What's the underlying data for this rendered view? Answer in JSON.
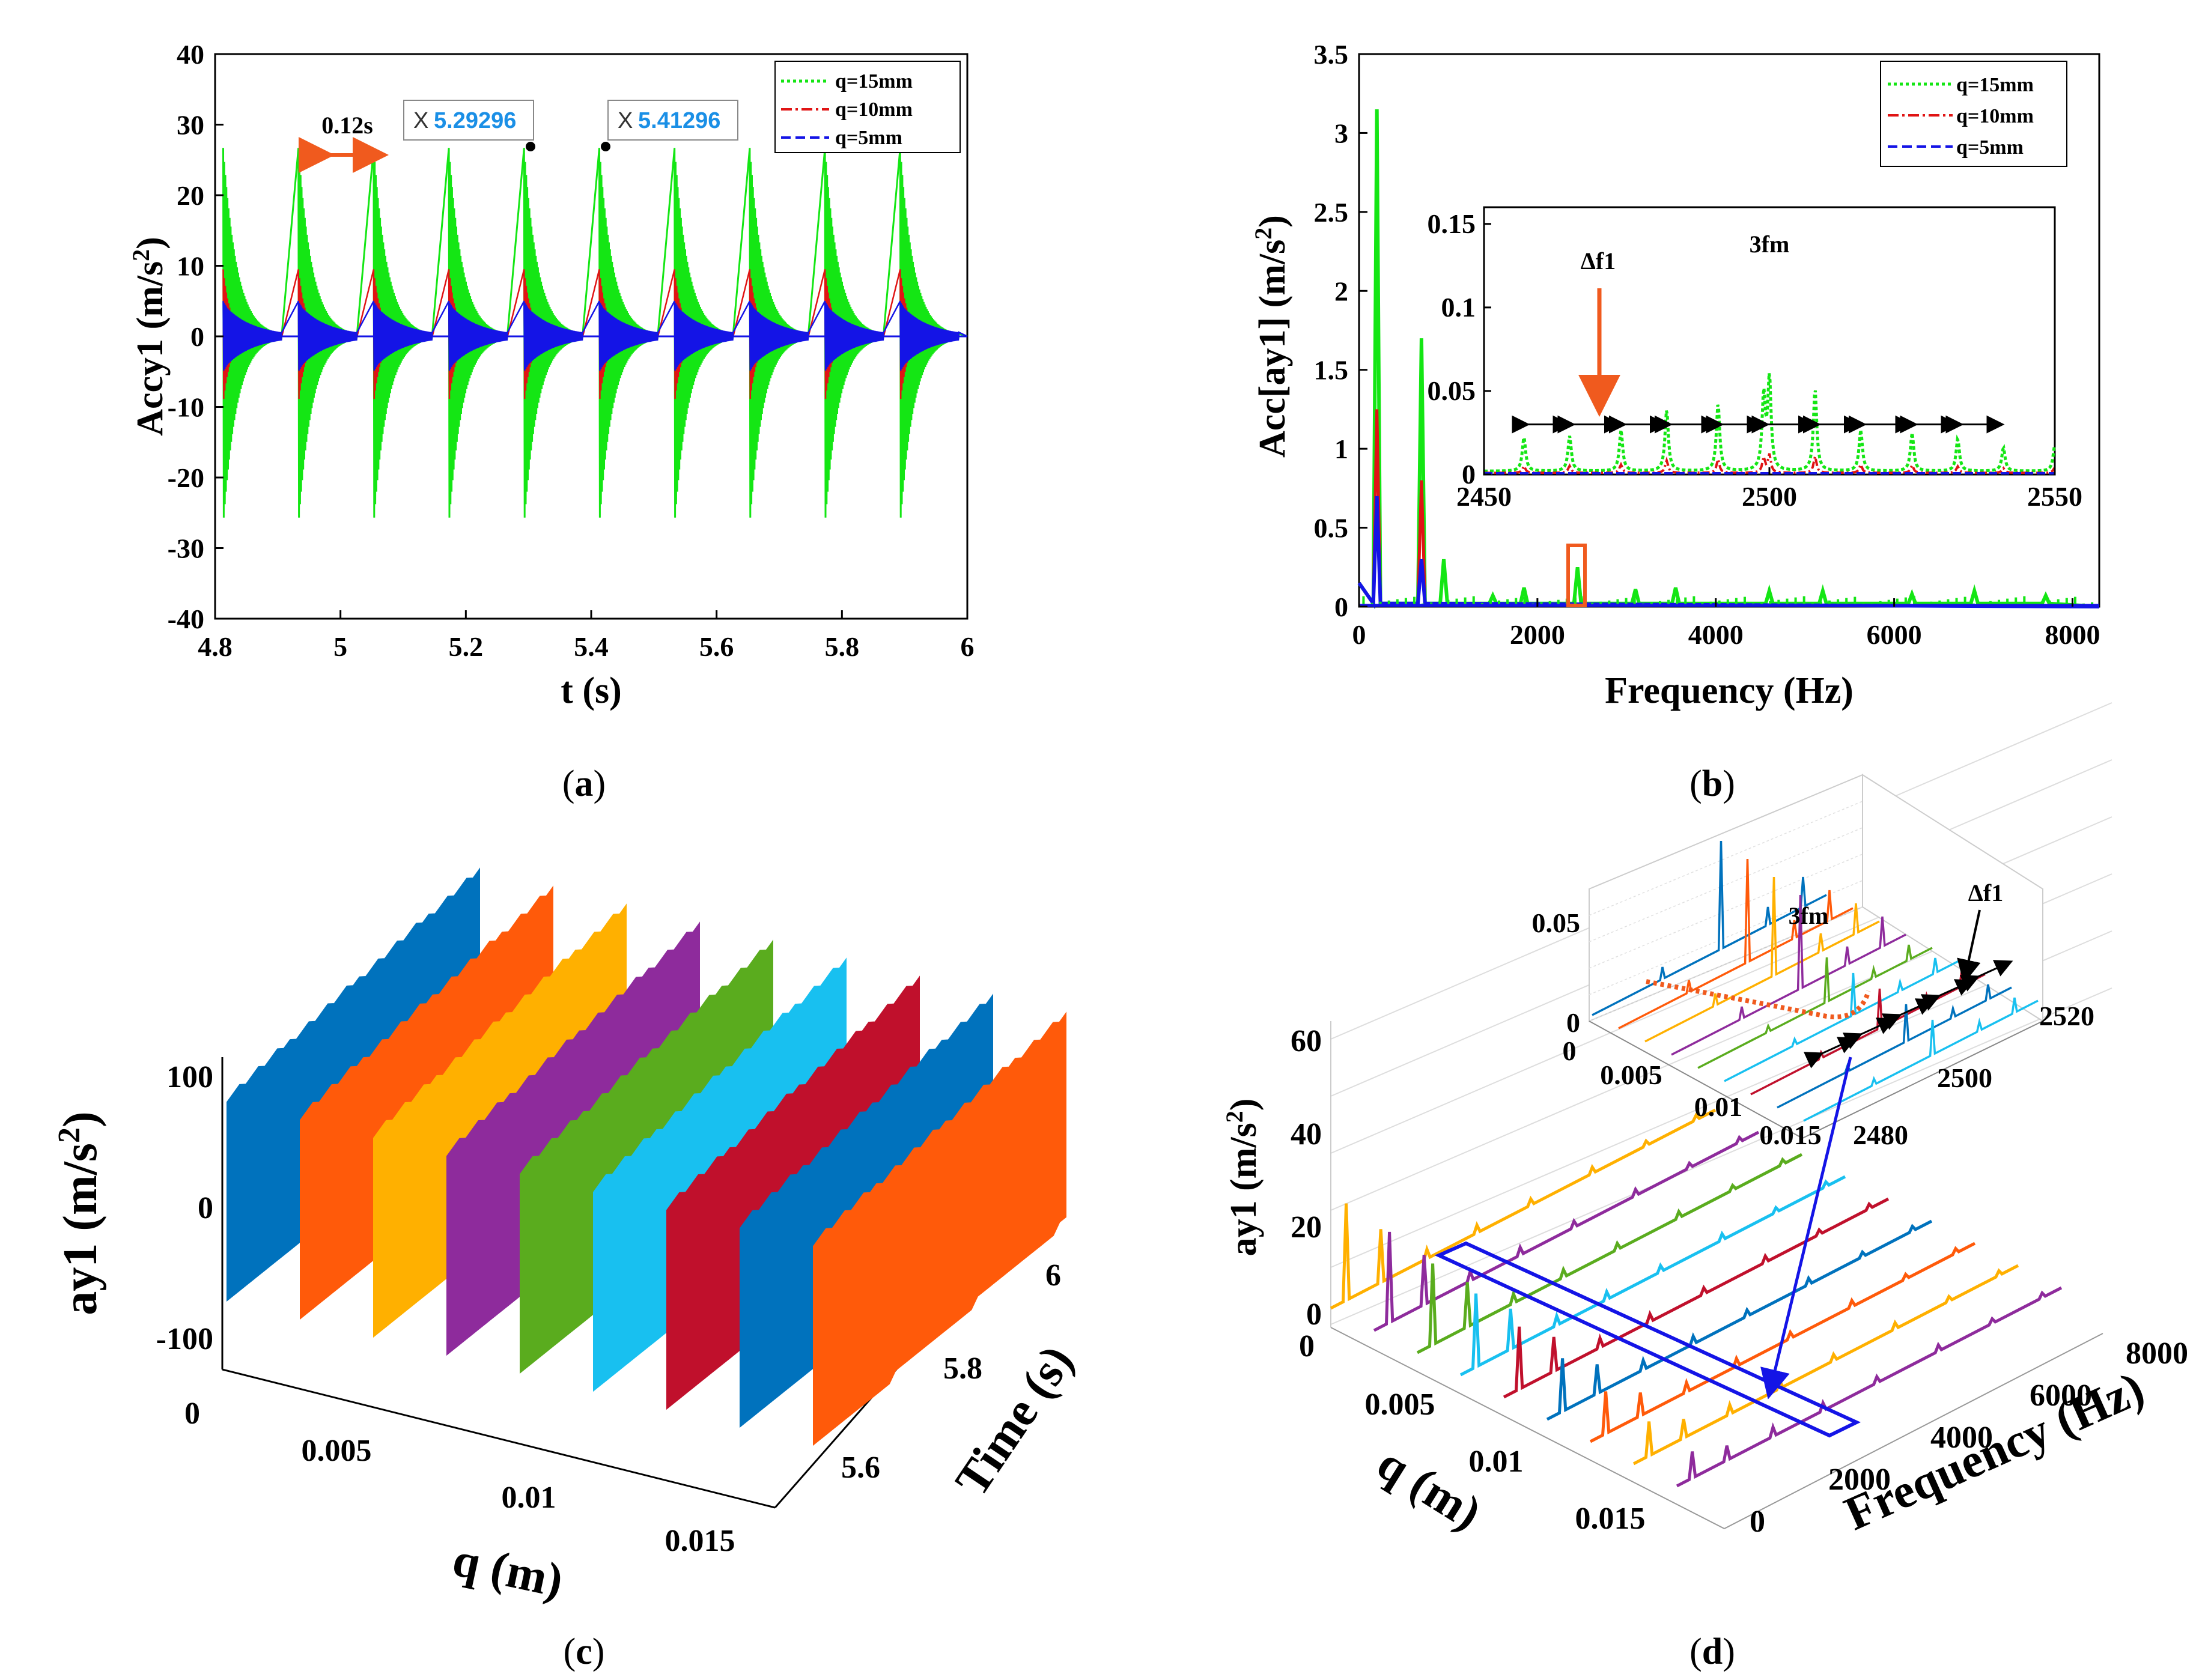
{
  "panel_labels": [
    "(a)",
    "(b)",
    "(c)",
    "(d)"
  ],
  "colors": {
    "green": "#14e614",
    "red": "#e01414",
    "blue": "#1414e6",
    "orange": "#f05a1e",
    "mblue": "#0072bd",
    "morange": "#ff5a0a",
    "myellow": "#ffb000",
    "mpurple": "#8e2b9c",
    "mgreen": "#5aac1e",
    "mcyan": "#18c0f0",
    "mred": "#c0102c"
  },
  "chart_data": [
    {
      "type": "line",
      "panel": "a",
      "xlabel": "t (s)",
      "ylabel": "Accy1 (m/s²)",
      "xlim": [
        4.8,
        6
      ],
      "ylim": [
        -40,
        40
      ],
      "xticks": [
        "4.8",
        "5",
        "5.2",
        "5.4",
        "5.6",
        "5.8",
        "6"
      ],
      "yticks": [
        "40",
        "30",
        "20",
        "10",
        "0",
        "-10",
        "-20",
        "-30",
        "-40"
      ],
      "impact_times": [
        4.81296,
        4.93296,
        5.05296,
        5.17296,
        5.29296,
        5.41296,
        5.53296,
        5.65296,
        5.77296,
        5.89296
      ],
      "series": [
        {
          "name": "q=15mm",
          "peak": 26.7
        },
        {
          "name": "q=10mm",
          "peak": 9.5
        },
        {
          "name": "q=5mm",
          "peak": 5
        }
      ],
      "legend": [
        "q=15mm",
        "q=10mm",
        "q=5mm"
      ],
      "legend_position": "top-right",
      "annotations": {
        "period": "0.12s",
        "tip1_x": "X",
        "tip1": "5.29296",
        "tip2_x": "X",
        "tip2": "5.41296"
      }
    },
    {
      "type": "line",
      "panel": "b",
      "xlabel": "Frequency (Hz)",
      "ylabel": "Acc[ay1] (m/s²)",
      "xlim": [
        0,
        8300
      ],
      "ylim": [
        0,
        3.5
      ],
      "xticks": [
        "0",
        "2000",
        "4000",
        "6000",
        "8000"
      ],
      "yticks": [
        "3.5",
        "3",
        "2.5",
        "2",
        "1.5",
        "1",
        "0.5",
        "0"
      ],
      "legend": [
        "q=15mm",
        "q=10mm",
        "q=5mm"
      ],
      "legend_position": "top-right",
      "peaks_q15": [
        [
          200,
          3.15
        ],
        [
          700,
          1.7
        ],
        [
          950,
          0.3
        ],
        [
          1500,
          0.07
        ],
        [
          1850,
          0.12
        ],
        [
          2450,
          0.25
        ],
        [
          3100,
          0.11
        ],
        [
          3550,
          0.12
        ],
        [
          4600,
          0.1
        ],
        [
          5200,
          0.1
        ],
        [
          6200,
          0.08
        ],
        [
          6900,
          0.1
        ],
        [
          7700,
          0.07
        ]
      ],
      "peaks_q10": [
        [
          200,
          1.25
        ],
        [
          700,
          0.8
        ]
      ],
      "peaks_q5": [
        [
          200,
          0.7
        ],
        [
          700,
          0.3
        ]
      ],
      "inset": {
        "xlim": [
          2450,
          2550
        ],
        "ylim": [
          0,
          0.16
        ],
        "xticks": [
          "2450",
          "2500",
          "2550"
        ],
        "yticks": [
          "0.15",
          "0.1",
          "0.05",
          "0"
        ],
        "peaks_q15": [
          [
            2457,
            0.058
          ],
          [
            2465,
            0.06
          ],
          [
            2474,
            0.07
          ],
          [
            2482,
            0.105
          ],
          [
            2491,
            0.115
          ],
          [
            2499,
            0.125
          ],
          [
            2500,
            0.155
          ],
          [
            2508,
            0.14
          ],
          [
            2516,
            0.07
          ],
          [
            2525,
            0.065
          ],
          [
            2533,
            0.055
          ],
          [
            2541,
            0.04
          ],
          [
            2550,
            0.045
          ]
        ],
        "annotations": [
          "Δf1",
          "3fm"
        ]
      }
    },
    {
      "type": "waterfall",
      "panel": "c",
      "xlabel": "q (m)",
      "ylabel": "ay1 (m/s²)",
      "zlabel": "Time (s)",
      "xticks": [
        "0",
        "0.005",
        "0.01",
        "0.015"
      ],
      "yticks": [
        "100",
        "0",
        "-100"
      ],
      "tticks": [
        "5.6",
        "5.8",
        "6"
      ],
      "ribbons": 9
    },
    {
      "type": "waterfall",
      "panel": "d",
      "xlabel": "q (m)",
      "ylabel": "ay1 (m/s²)",
      "zlabel": "Frequency (Hz)",
      "xticks": [
        "0",
        "0.005",
        "0.01",
        "0.015"
      ],
      "yticks": [
        "60",
        "40",
        "20",
        "0"
      ],
      "fticks": [
        "0",
        "2000",
        "4000",
        "6000",
        "8000"
      ],
      "series_peaks": [
        62,
        58,
        52,
        47,
        40,
        34,
        27,
        22,
        17
      ],
      "inset": {
        "yticks": [
          "0.05",
          "0"
        ],
        "xticks": [
          "0",
          "0.005",
          "0.01",
          "0.015"
        ],
        "fticks": [
          "2480",
          "2500",
          "2520"
        ],
        "annotations": [
          "3fm",
          "Δf1"
        ]
      }
    }
  ]
}
